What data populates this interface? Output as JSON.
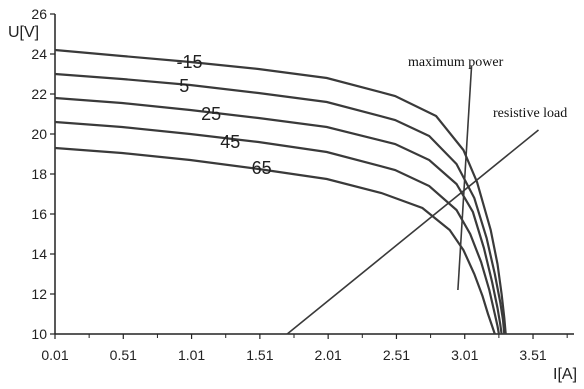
{
  "chart_data": {
    "type": "line",
    "title": "",
    "xlabel": "I[A]",
    "ylabel": "U[V]",
    "xlim": [
      0.01,
      3.81
    ],
    "ylim": [
      10,
      26
    ],
    "x_ticks": [
      "0.01",
      "0.51",
      "1.01",
      "1.51",
      "2.01",
      "2.51",
      "3.01",
      "3.51"
    ],
    "y_ticks": [
      "10",
      "12",
      "14",
      "16",
      "18",
      "20",
      "22",
      "24",
      "26"
    ],
    "grid": false,
    "series": [
      {
        "name": "-15",
        "x": [
          0.01,
          0.5,
          1.0,
          1.5,
          2.0,
          2.5,
          2.8,
          3.0,
          3.1,
          3.2,
          3.25,
          3.28,
          3.3,
          3.31
        ],
        "y": [
          24.2,
          23.9,
          23.6,
          23.25,
          22.8,
          21.9,
          20.9,
          19.2,
          17.6,
          15.2,
          13.5,
          12.0,
          10.8,
          10.0
        ]
      },
      {
        "name": "5",
        "x": [
          0.01,
          0.5,
          1.0,
          1.5,
          2.0,
          2.5,
          2.75,
          2.95,
          3.08,
          3.17,
          3.23,
          3.27,
          3.29,
          3.3
        ],
        "y": [
          23.0,
          22.75,
          22.45,
          22.05,
          21.6,
          20.7,
          19.9,
          18.5,
          16.8,
          14.8,
          13.0,
          11.6,
          10.7,
          10.0
        ]
      },
      {
        "name": "25",
        "x": [
          0.01,
          0.5,
          1.0,
          1.5,
          2.0,
          2.5,
          2.75,
          2.95,
          3.07,
          3.15,
          3.21,
          3.25,
          3.27,
          3.28
        ],
        "y": [
          21.8,
          21.55,
          21.2,
          20.8,
          20.35,
          19.5,
          18.7,
          17.5,
          16.1,
          14.3,
          12.6,
          11.3,
          10.5,
          10.0
        ]
      },
      {
        "name": "45",
        "x": [
          0.01,
          0.5,
          1.0,
          1.5,
          2.0,
          2.5,
          2.75,
          2.95,
          3.05,
          3.13,
          3.19,
          3.23,
          3.25,
          3.26
        ],
        "y": [
          20.6,
          20.35,
          20.0,
          19.6,
          19.1,
          18.2,
          17.4,
          16.2,
          15.0,
          13.6,
          12.2,
          11.0,
          10.4,
          10.0
        ]
      },
      {
        "name": "65",
        "x": [
          0.01,
          0.5,
          1.0,
          1.5,
          2.0,
          2.4,
          2.7,
          2.9,
          3.0,
          3.08,
          3.14,
          3.18,
          3.21,
          3.23
        ],
        "y": [
          19.3,
          19.05,
          18.7,
          18.25,
          17.75,
          17.05,
          16.3,
          15.2,
          14.2,
          13.0,
          11.9,
          11.0,
          10.4,
          10.0
        ]
      }
    ],
    "annotations": [
      {
        "text": "maximum power",
        "line_x": [
          2.96,
          3.06
        ],
        "line_y": [
          12.2,
          23.4
        ]
      },
      {
        "text": "resistive load",
        "line_x": [
          1.71,
          3.55
        ],
        "line_y": [
          10.0,
          20.2
        ]
      }
    ]
  }
}
